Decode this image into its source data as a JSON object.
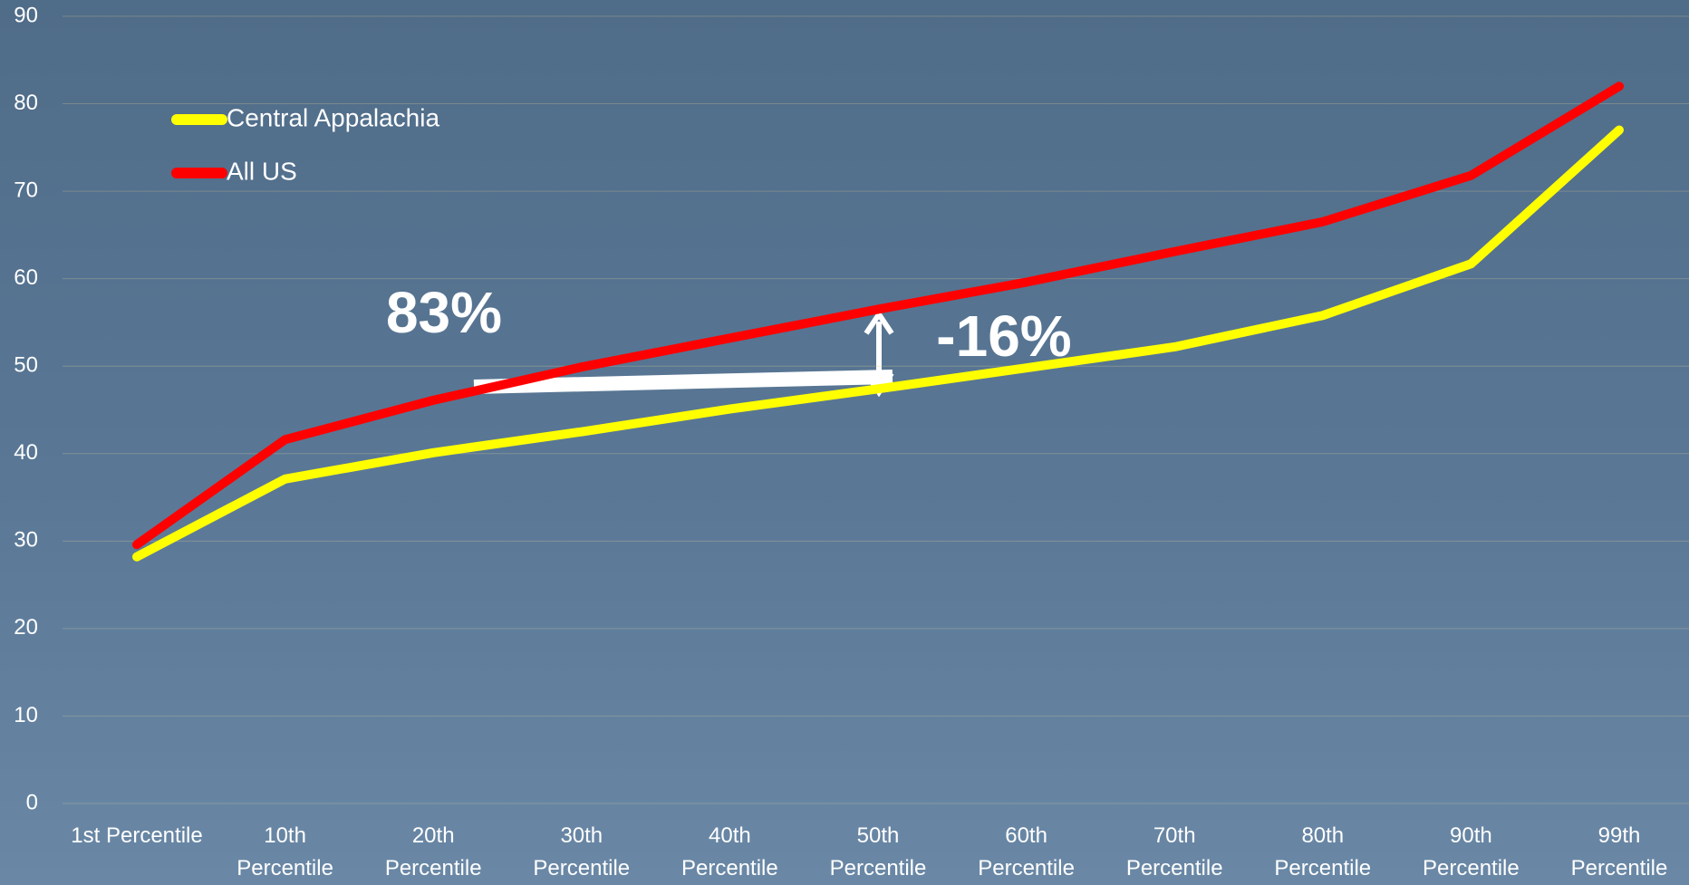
{
  "chart_data": {
    "type": "line",
    "categories": [
      "1st Percentile",
      "10th Percentile",
      "20th Percentile",
      "30th Percentile",
      "40th Percentile",
      "50th Percentile",
      "60th Percentile",
      "70th Percentile",
      "80th Percentile",
      "90th Percentile",
      "99th Percentile"
    ],
    "series": [
      {
        "name": "Central Appalachia",
        "color": "#ffff00",
        "values": [
          28.2,
          37.1,
          40.1,
          42.5,
          45.1,
          47.4,
          49.8,
          52.2,
          55.8,
          61.7,
          77.0
        ]
      },
      {
        "name": "All US",
        "color": "#ff0000",
        "values": [
          29.6,
          41.6,
          46.1,
          49.9,
          53.2,
          56.5,
          59.6,
          63.1,
          66.5,
          71.8,
          82.0
        ]
      }
    ],
    "ylim": [
      0,
      90
    ],
    "yticks": [
      0,
      10,
      20,
      30,
      40,
      50,
      60,
      70,
      80,
      90
    ],
    "grid": true,
    "legend": "upper-left",
    "annotations": [
      "83%",
      "-16%"
    ]
  }
}
